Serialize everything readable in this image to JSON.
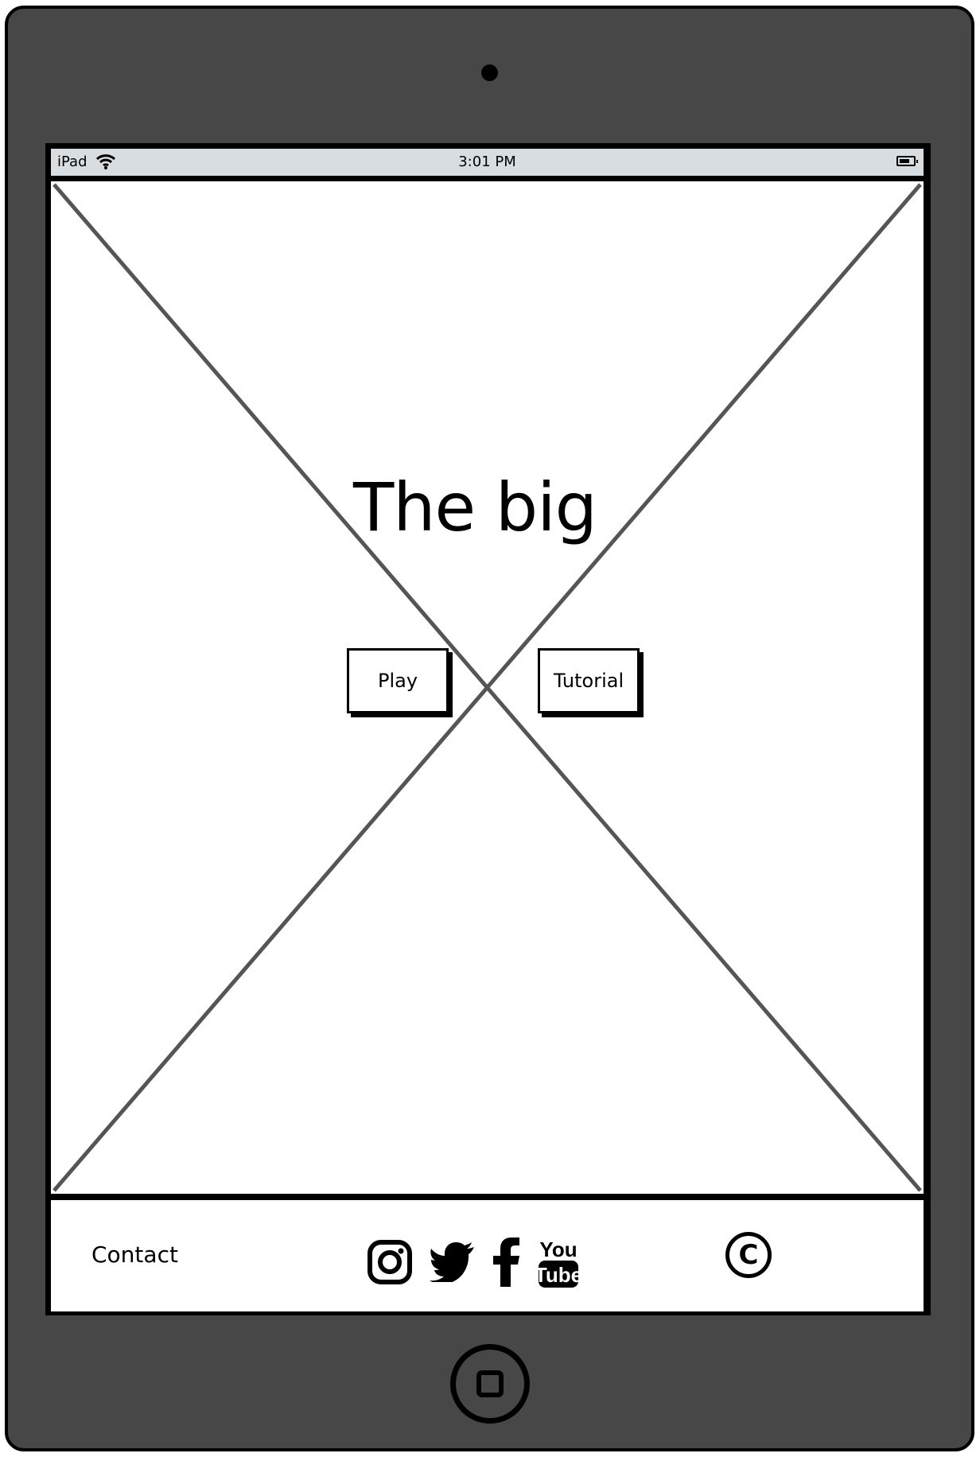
{
  "status_bar": {
    "carrier": "iPad",
    "time": "3:01 PM"
  },
  "main": {
    "title": "The big",
    "buttons": {
      "play": "Play",
      "tutorial": "Tutorial"
    }
  },
  "footer": {
    "contact": "Contact",
    "social_icons": [
      "instagram-icon",
      "twitter-icon",
      "facebook-icon",
      "youtube-icon"
    ],
    "youtube_text": {
      "top": "You",
      "bottom": "Tube"
    },
    "copyright_symbol": "C"
  },
  "colors": {
    "device_body": "#474747",
    "status_bar": "#d8dde1",
    "placeholder_x": "#555555"
  }
}
